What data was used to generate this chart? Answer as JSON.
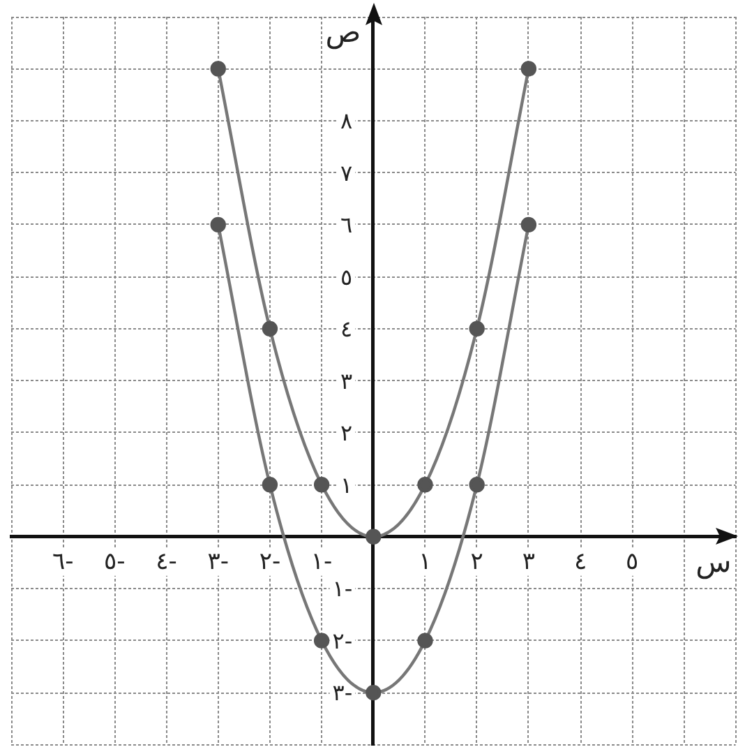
{
  "chart_data": {
    "type": "line",
    "x": [
      -3,
      -2,
      -1,
      0,
      1,
      2,
      3
    ],
    "series": [
      {
        "color": "#777777",
        "values": [
          9,
          4,
          1,
          0,
          1,
          4,
          9
        ]
      },
      {
        "color": "#777777",
        "values": [
          6,
          1,
          -2,
          -3,
          -2,
          1,
          6
        ]
      }
    ],
    "xlabel": "س",
    "ylabel": "ص",
    "xlim": [
      -7,
      7
    ],
    "ylim": [
      -4,
      10
    ],
    "xticks": [
      {
        "value": -7,
        "label": null
      },
      {
        "value": -6,
        "label": "٦-"
      },
      {
        "value": -5,
        "label": "٥-"
      },
      {
        "value": -4,
        "label": "٤-"
      },
      {
        "value": -3,
        "label": "٣-"
      },
      {
        "value": -2,
        "label": "٢-"
      },
      {
        "value": -1,
        "label": "١-"
      },
      {
        "value": 0,
        "label": null
      },
      {
        "value": 1,
        "label": "١"
      },
      {
        "value": 2,
        "label": "٢"
      },
      {
        "value": 3,
        "label": "٣"
      },
      {
        "value": 4,
        "label": "٤"
      },
      {
        "value": 5,
        "label": "٥"
      },
      {
        "value": 6,
        "label": null
      },
      {
        "value": 7,
        "label": null
      }
    ],
    "yticks": [
      {
        "value": -4,
        "label": null
      },
      {
        "value": -3,
        "label": "٣-"
      },
      {
        "value": -2,
        "label": "٢-"
      },
      {
        "value": -1,
        "label": "١-"
      },
      {
        "value": 0,
        "label": null
      },
      {
        "value": 1,
        "label": "١"
      },
      {
        "value": 2,
        "label": "٢"
      },
      {
        "value": 3,
        "label": "٣"
      },
      {
        "value": 4,
        "label": "٤"
      },
      {
        "value": 5,
        "label": "٥"
      },
      {
        "value": 6,
        "label": "٦"
      },
      {
        "value": 7,
        "label": "٧"
      },
      {
        "value": 8,
        "label": "٨"
      },
      {
        "value": 9,
        "label": null
      },
      {
        "value": 10,
        "label": null
      }
    ],
    "grid": true,
    "marker": "circle"
  }
}
